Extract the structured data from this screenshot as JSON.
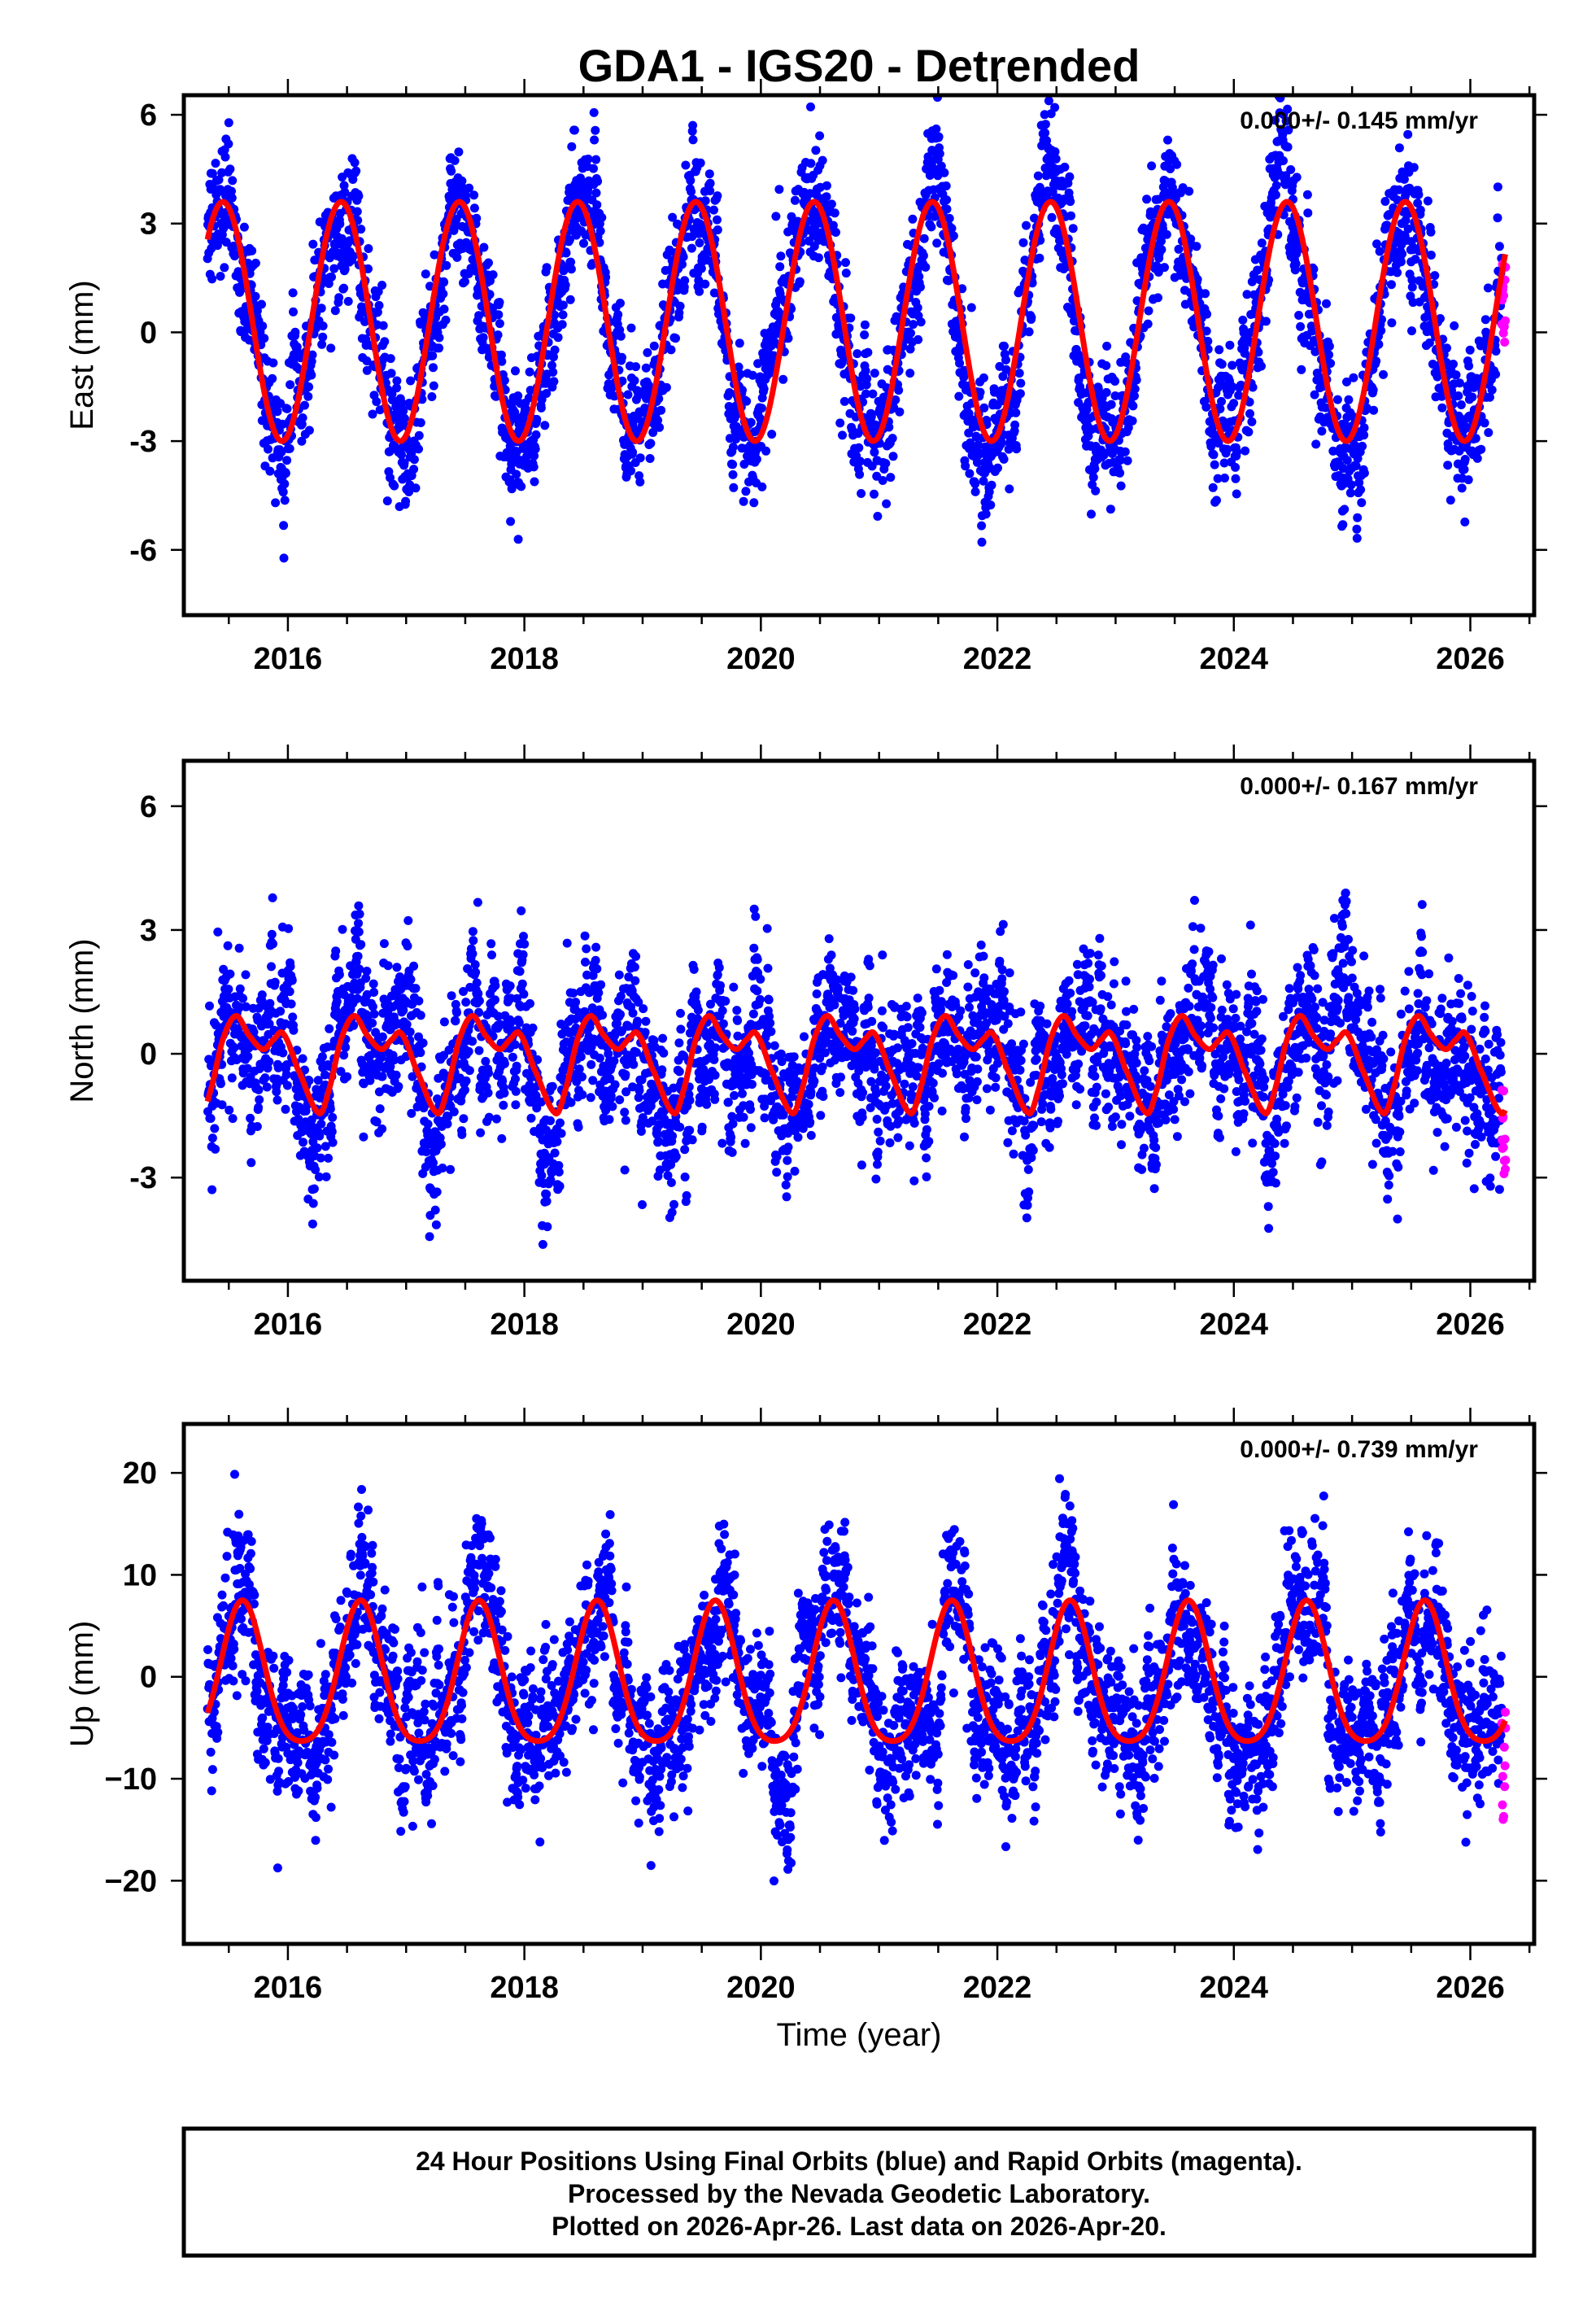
{
  "chart_data": {
    "type": "scatter",
    "title": "GDA1 - IGS20 - Detrended",
    "xlabel": "Time (year)",
    "xlim": [
      2015.12,
      2026.54
    ],
    "x_tick_labels": [
      "2016",
      "2018",
      "2020",
      "2022",
      "2024",
      "2026"
    ],
    "x_ticks": [
      2016,
      2018,
      2020,
      2022,
      2024,
      2026
    ],
    "data_span": [
      2015.32,
      2026.3
    ],
    "rapid_orbit_start": 2026.265,
    "colors": {
      "final_orbits": "#0000ff",
      "rapid_orbits": "#ff00ff",
      "model": "#ff0000"
    },
    "panels": [
      {
        "name": "east",
        "ylabel": "East (mm)",
        "ylim": [
          -7.8,
          6.54
        ],
        "yticks": [
          6,
          3,
          0,
          -3,
          -6
        ],
        "ytick_labels": [
          "6",
          "3",
          "0",
          "-3",
          "-6"
        ],
        "rate_text": "0.000+/- 0.145 mm/yr",
        "model": {
          "type": "harmonic",
          "offset": 0.3,
          "annual_amp": 3.3,
          "annual_peak_frac": 0.45,
          "semiannual_amp": 0,
          "semiannual_peak_frac": 0
        },
        "noise": {
          "correlated_sd": 0.75,
          "white_sd": 0.8
        }
      },
      {
        "name": "north",
        "ylabel": "North (mm)",
        "ylim": [
          -5.5,
          7.1
        ],
        "yticks": [
          6,
          3,
          0,
          -3
        ],
        "ytick_labels": [
          "6",
          "3",
          "0",
          "-3"
        ],
        "rate_text": "0.000+/- 0.167 mm/yr",
        "model": {
          "type": "knots",
          "knots": [
            [
              0.08,
              -0.35
            ],
            [
              0.26,
              -1.43
            ],
            [
              0.34,
              -0.94
            ],
            [
              0.45,
              0.35
            ],
            [
              0.56,
              0.92
            ],
            [
              0.67,
              0.45
            ],
            [
              0.79,
              0.11
            ],
            [
              0.88,
              0.35
            ],
            [
              0.96,
              0.49
            ]
          ]
        },
        "noise": {
          "correlated_sd": 0.8,
          "white_sd": 0.75
        }
      },
      {
        "name": "up",
        "ylabel": "Up (mm)",
        "ylim": [
          -26.2,
          24.8
        ],
        "yticks": [
          20,
          10,
          0,
          -10,
          -20
        ],
        "ytick_labels": [
          "20",
          "10",
          "0",
          "−10",
          "−20"
        ],
        "rate_text": "0.000+/- 0.739 mm/yr",
        "model": {
          "type": "harmonic",
          "offset": -0.6,
          "annual_amp": 6.9,
          "annual_peak_frac": 0.615,
          "semiannual_amp": 1.2,
          "semiannual_peak_frac": 0.615
        },
        "noise": {
          "correlated_sd": 3.2,
          "white_sd": 3.0
        }
      }
    ]
  },
  "footer": {
    "line1": "24 Hour Positions Using Final Orbits (blue) and Rapid Orbits (magenta).",
    "line2": "Processed by the Nevada Geodetic Laboratory.",
    "line3": "Plotted on 2026-Apr-26. Last data on 2026-Apr-20."
  }
}
